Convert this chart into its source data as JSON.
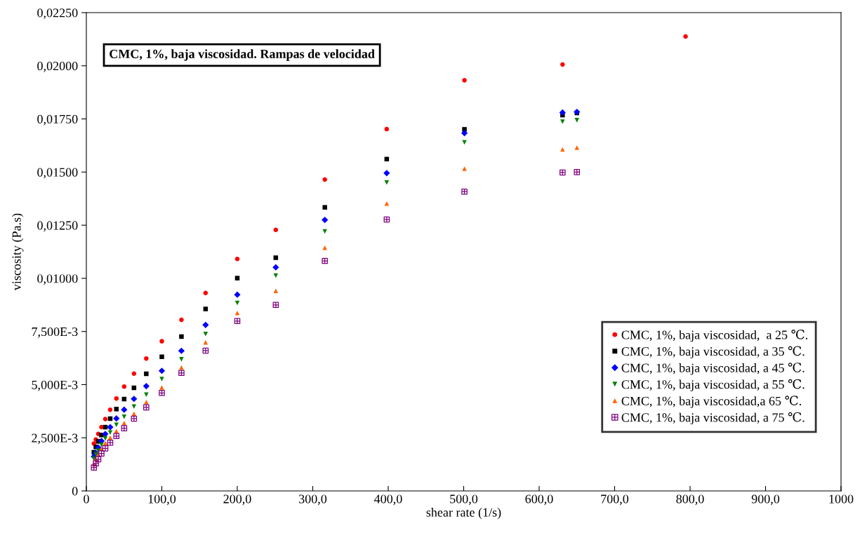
{
  "chart_data": {
    "type": "scatter",
    "title": "CMC, 1%, baja viscosidad. Rampas de velocidad",
    "xlabel": "shear rate (1/s)",
    "ylabel": "viscosity (Pa.s)",
    "xlim": [
      0,
      1000
    ],
    "xticks": [
      0,
      {
        "value": 100,
        "label": "100,0"
      },
      {
        "value": 200,
        "label": "200,0"
      },
      {
        "value": 300,
        "label": "300,0"
      },
      {
        "value": 400,
        "label": "400,0"
      },
      {
        "value": 500,
        "label": "500,0"
      },
      {
        "value": 600,
        "label": "600,0"
      },
      {
        "value": 700,
        "label": "700,0"
      },
      {
        "value": 800,
        "label": "800,0"
      },
      {
        "value": 900,
        "label": "900,0"
      },
      1000
    ],
    "ylim": [
      0,
      0.0225
    ],
    "yticks": [
      0,
      {
        "value": 0.0025,
        "label": "2,500E-3"
      },
      {
        "value": 0.005,
        "label": "5,000E-3"
      },
      {
        "value": 0.0075,
        "label": "7,500E-3"
      },
      {
        "value": 0.01,
        "label": "0,01000"
      },
      {
        "value": 0.0125,
        "label": "0,01250"
      },
      {
        "value": 0.015,
        "label": "0,01500"
      },
      {
        "value": 0.0175,
        "label": "0,01750"
      },
      {
        "value": 0.02,
        "label": "0,02000"
      },
      {
        "value": 0.0225,
        "label": "0,02250"
      }
    ],
    "grid": false,
    "legend": "bottom right",
    "series": [
      {
        "name": "CMC, 1%, baja viscosidad,  a 25 ℃.",
        "color": "#ff0000",
        "marker": "circle",
        "x": [
          10,
          12.6,
          15.8,
          20,
          25.1,
          31.6,
          39.8,
          50.1,
          63.1,
          79.4,
          100,
          126,
          158,
          200,
          251,
          316,
          398,
          501,
          631,
          794
        ],
        "values": [
          0.00223,
          0.00242,
          0.00268,
          0.003,
          0.00338,
          0.00382,
          0.00435,
          0.00491,
          0.00552,
          0.00623,
          0.00704,
          0.00805,
          0.00931,
          0.01091,
          0.01228,
          0.01465,
          0.01702,
          0.01932,
          0.02006,
          0.02138
        ]
      },
      {
        "name": "CMC, 1%, baja viscosidad, a 35 ℃.",
        "color": "#000000",
        "marker": "square",
        "x": [
          10,
          12.6,
          15.8,
          20,
          25.1,
          31.6,
          39.8,
          50.1,
          63.1,
          79.4,
          100,
          126,
          158,
          200,
          251,
          316,
          398,
          501,
          631,
          650
        ],
        "values": [
          0.00182,
          0.00207,
          0.00233,
          0.00263,
          0.003,
          0.0034,
          0.00385,
          0.00432,
          0.00485,
          0.00551,
          0.00631,
          0.00726,
          0.00856,
          0.01001,
          0.01097,
          0.01334,
          0.01561,
          0.01701,
          0.01768,
          0.01778
        ]
      },
      {
        "name": "CMC, 1%, baja viscosidad, a 45 ℃.",
        "color": "#0000ff",
        "marker": "diamond",
        "x": [
          10,
          12.6,
          15.8,
          20,
          25.1,
          31.6,
          39.8,
          50.1,
          63.1,
          79.4,
          100,
          126,
          158,
          200,
          251,
          316,
          398,
          501,
          631,
          650
        ],
        "values": [
          0.00162,
          0.00178,
          0.00204,
          0.00235,
          0.00268,
          0.003,
          0.00341,
          0.00382,
          0.00433,
          0.00493,
          0.00565,
          0.00659,
          0.00781,
          0.00923,
          0.01052,
          0.01275,
          0.01495,
          0.01683,
          0.0178,
          0.01783
        ]
      },
      {
        "name": "CMC, 1%, baja viscosidad, a 55 ℃.",
        "color": "#008000",
        "marker": "triangle_down",
        "x": [
          10,
          12.6,
          15.8,
          20,
          25.1,
          31.6,
          39.8,
          50.1,
          63.1,
          79.4,
          100,
          126,
          158,
          200,
          251,
          316,
          398,
          501,
          631,
          650
        ],
        "values": [
          0.00152,
          0.00172,
          0.00189,
          0.00217,
          0.00247,
          0.00275,
          0.00311,
          0.00349,
          0.00397,
          0.00453,
          0.00526,
          0.00619,
          0.00738,
          0.00884,
          0.01013,
          0.01221,
          0.01451,
          0.0164,
          0.01737,
          0.01744
        ]
      },
      {
        "name": "CMC, 1%, baja viscosidad,a 65 ℃.",
        "color": "#ff6600",
        "marker": "triangle",
        "x": [
          10,
          12.6,
          15.8,
          20,
          25.1,
          31.6,
          39.8,
          50.1,
          63.1,
          79.4,
          100,
          126,
          158,
          200,
          251,
          316,
          398,
          501,
          631,
          650
        ],
        "values": [
          0.00126,
          0.00149,
          0.00171,
          0.00198,
          0.00225,
          0.00251,
          0.00281,
          0.00319,
          0.00363,
          0.00418,
          0.00487,
          0.00581,
          0.00699,
          0.00837,
          0.00941,
          0.01144,
          0.01352,
          0.01516,
          0.01607,
          0.01615
        ]
      },
      {
        "name": "CMC, 1%, baja viscosidad, a 75 ℃.",
        "color": "#800080",
        "marker": "cross",
        "x": [
          10,
          12.6,
          15.8,
          20,
          25.1,
          31.6,
          39.8,
          50.1,
          63.1,
          79.4,
          100,
          126,
          158,
          200,
          251,
          316,
          398,
          501,
          631,
          650
        ],
        "values": [
          0.0011,
          0.0013,
          0.00149,
          0.00176,
          0.002,
          0.00227,
          0.00258,
          0.00295,
          0.0034,
          0.00393,
          0.00461,
          0.00555,
          0.0066,
          0.00799,
          0.00875,
          0.01082,
          0.01277,
          0.01408,
          0.01498,
          0.015
        ]
      }
    ]
  }
}
